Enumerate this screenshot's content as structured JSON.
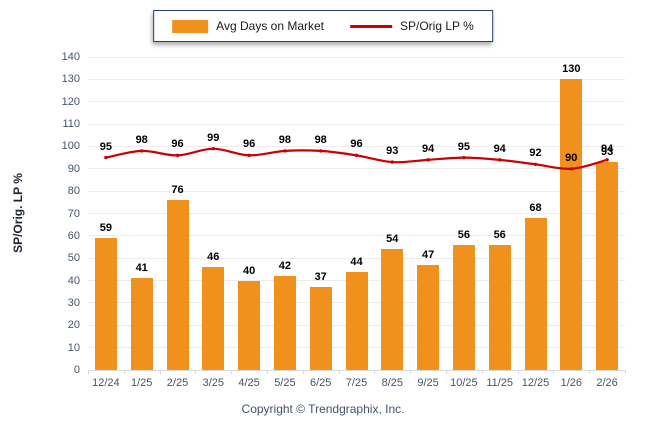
{
  "chart_data": {
    "type": "combo-bar-line",
    "categories": [
      "12/24",
      "1/25",
      "2/25",
      "3/25",
      "4/25",
      "5/25",
      "6/25",
      "7/25",
      "8/25",
      "9/25",
      "10/25",
      "11/25",
      "12/25",
      "1/26",
      "2/26"
    ],
    "series": [
      {
        "name": "Avg Days on Market",
        "type": "bar",
        "color": "#F0911E",
        "values": [
          59,
          41,
          76,
          46,
          40,
          42,
          37,
          44,
          54,
          47,
          56,
          56,
          68,
          130,
          93
        ]
      },
      {
        "name": "SP/Orig LP %",
        "type": "line",
        "color": "#CC0000",
        "values": [
          95,
          98,
          96,
          99,
          96,
          98,
          98,
          96,
          93,
          94,
          95,
          94,
          92,
          90,
          94
        ]
      }
    ],
    "title": "",
    "xlabel": "",
    "ylabel": "SP/Orig. LP %",
    "ylim": [
      0,
      140
    ],
    "ytick_step": 10,
    "grid": "horizontal",
    "legend_position": "top-center",
    "value_labels": true
  },
  "legend": {
    "items": [
      {
        "label": "Avg Days on Market",
        "swatch": "bar-swatch-icon"
      },
      {
        "label": "SP/Orig LP %",
        "swatch": "line-swatch-icon"
      }
    ]
  },
  "colors": {
    "bar": "#F0911E",
    "line": "#CC0000",
    "grid": "#ececec",
    "axis_text": "#44546A",
    "value_text": "#000000"
  },
  "footer": {
    "copyright": "Copyright © Trendgraphix, Inc."
  }
}
